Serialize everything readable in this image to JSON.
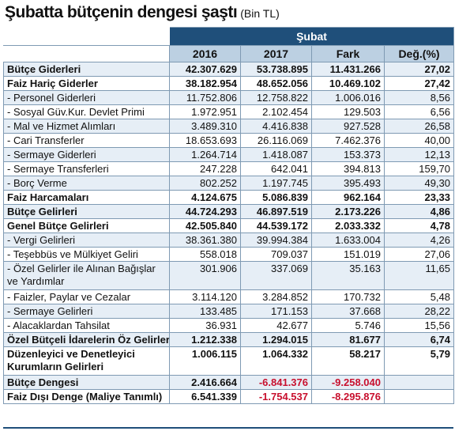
{
  "title": "Şubatta bütçenin dengesi şaştı",
  "unit": "(Bin TL)",
  "super_header": "Şubat",
  "columns": [
    "2016",
    "2017",
    "Fark",
    "Değ.(%)"
  ],
  "rows": [
    {
      "label": "Bütçe Giderleri",
      "v2016": "42.307.629",
      "v2017": "53.738.895",
      "fark": "11.431.266",
      "deg": "27,02",
      "bold": true
    },
    {
      "label": "Faiz Hariç Giderler",
      "v2016": "38.182.954",
      "v2017": "48.652.056",
      "fark": "10.469.102",
      "deg": "27,42",
      "bold": true
    },
    {
      "label": "- Personel Giderleri",
      "v2016": "11.752.806",
      "v2017": "12.758.822",
      "fark": "1.006.016",
      "deg": "8,56"
    },
    {
      "label": "- Sosyal Güv.Kur. Devlet Primi",
      "v2016": "1.972.951",
      "v2017": "2.102.454",
      "fark": "129.503",
      "deg": "6,56"
    },
    {
      "label": "- Mal ve Hizmet Alımları",
      "v2016": "3.489.310",
      "v2017": "4.416.838",
      "fark": "927.528",
      "deg": "26,58"
    },
    {
      "label": "- Cari Transferler",
      "v2016": "18.653.693",
      "v2017": "26.116.069",
      "fark": "7.462.376",
      "deg": "40,00"
    },
    {
      "label": "- Sermaye Giderleri",
      "v2016": "1.264.714",
      "v2017": "1.418.087",
      "fark": "153.373",
      "deg": "12,13"
    },
    {
      "label": "- Sermaye Transferleri",
      "v2016": "247.228",
      "v2017": "642.041",
      "fark": "394.813",
      "deg": "159,70"
    },
    {
      "label": "- Borç Verme",
      "v2016": "802.252",
      "v2017": "1.197.745",
      "fark": "395.493",
      "deg": "49,30"
    },
    {
      "label": "Faiz Harcamaları",
      "v2016": "4.124.675",
      "v2017": "5.086.839",
      "fark": "962.164",
      "deg": "23,33",
      "bold": true
    },
    {
      "label": "Bütçe Gelirleri",
      "v2016": "44.724.293",
      "v2017": "46.897.519",
      "fark": "2.173.226",
      "deg": "4,86",
      "bold": true
    },
    {
      "label": "Genel Bütçe Gelirleri",
      "v2016": "42.505.840",
      "v2017": "44.539.172",
      "fark": "2.033.332",
      "deg": "4,78",
      "bold": true
    },
    {
      "label": "- Vergi Gelirleri",
      "v2016": "38.361.380",
      "v2017": "39.994.384",
      "fark": "1.633.004",
      "deg": "4,26"
    },
    {
      "label": "- Teşebbüs ve Mülkiyet Geliri",
      "v2016": "558.018",
      "v2017": "709.037",
      "fark": "151.019",
      "deg": "27,06"
    },
    {
      "label": "- Özel Gelirler ile Alınan Bağışlar ve Yardımlar",
      "v2016": "301.906",
      "v2017": "337.069",
      "fark": "35.163",
      "deg": "11,65",
      "tall": true
    },
    {
      "label": "- Faizler, Paylar ve Cezalar",
      "v2016": "3.114.120",
      "v2017": "3.284.852",
      "fark": "170.732",
      "deg": "5,48"
    },
    {
      "label": "- Sermaye Gelirleri",
      "v2016": "133.485",
      "v2017": "171.153",
      "fark": "37.668",
      "deg": "28,22"
    },
    {
      "label": "- Alacaklardan Tahsilat",
      "v2016": "36.931",
      "v2017": "42.677",
      "fark": "5.746",
      "deg": "15,56"
    },
    {
      "label": "Özel Bütçeli İdarelerin Öz Gelirleri",
      "v2016": "1.212.338",
      "v2017": "1.294.015",
      "fark": "81.677",
      "deg": "6,74",
      "bold": true
    },
    {
      "label": "Düzenleyici ve Denetleyici Kurumların Gelirleri",
      "v2016": "1.006.115",
      "v2017": "1.064.332",
      "fark": "58.217",
      "deg": "5,79",
      "bold": true,
      "tall": true
    },
    {
      "label": "Bütçe Dengesi",
      "v2016": "2.416.664",
      "v2017": "-6.841.376",
      "fark": "-9.258.040",
      "deg": "",
      "bold": true,
      "neg2017": true,
      "negFark": true
    },
    {
      "label": "Faiz Dışı Denge (Maliye Tanımlı)",
      "v2016": "6.541.339",
      "v2017": "-1.754.537",
      "fark": "-8.295.876",
      "deg": "",
      "bold": true,
      "neg2017": true,
      "negFark": true
    }
  ],
  "colors": {
    "header_dark": "#1f4f7a",
    "header_light": "#bcd0e2",
    "row_alt": "#e6eef6",
    "negative": "#c8102e"
  }
}
